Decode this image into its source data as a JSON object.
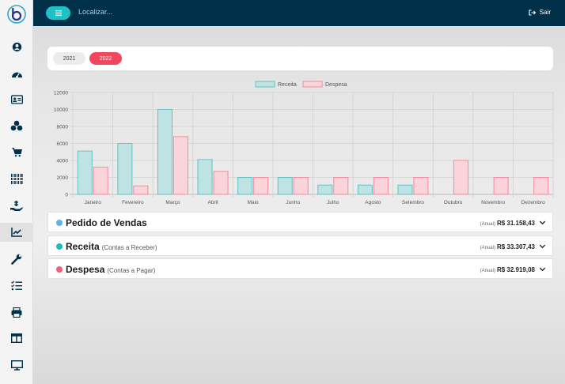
{
  "topbar": {
    "search_placeholder": "Localizar...",
    "logout_label": "Sair"
  },
  "sidebar": {
    "items": [
      {
        "icon": "user-circle-icon"
      },
      {
        "icon": "dashboard-gauge-icon"
      },
      {
        "icon": "id-card-icon"
      },
      {
        "icon": "boxes-icon"
      },
      {
        "icon": "shopping-cart-icon"
      },
      {
        "icon": "barcode-icon"
      },
      {
        "icon": "hand-holding-money-icon"
      },
      {
        "icon": "line-chart-icon",
        "active": true
      },
      {
        "icon": "wrench-icon"
      },
      {
        "icon": "task-list-icon"
      },
      {
        "icon": "printer-icon"
      },
      {
        "icon": "table-layout-icon"
      },
      {
        "icon": "monitor-icon"
      }
    ]
  },
  "years": {
    "items": [
      "2021",
      "2022"
    ],
    "selected": "2022"
  },
  "chart_data": {
    "type": "bar",
    "categories": [
      "Janeiro",
      "Fevereiro",
      "Março",
      "Abril",
      "Maio",
      "Junho",
      "Julho",
      "Agosto",
      "Setembro",
      "Outubro",
      "Novembro",
      "Dezembro"
    ],
    "series": [
      {
        "name": "Receita",
        "values": [
          5100,
          6000,
          10000,
          4100,
          2000,
          2000,
          1100,
          1100,
          1100,
          0,
          0,
          0
        ],
        "color": "#bfe3e3",
        "border": "#5fc3c3"
      },
      {
        "name": "Despesa",
        "values": [
          3200,
          1000,
          6800,
          2700,
          2000,
          2000,
          2000,
          2000,
          2000,
          4000,
          2000,
          2000
        ],
        "color": "#fbd3da",
        "border": "#f48a9d"
      }
    ],
    "yticks": [
      0,
      2000,
      4000,
      6000,
      8000,
      10000,
      12000
    ],
    "ylim": [
      0,
      12000
    ],
    "grid": true,
    "legend": "top-center"
  },
  "accordions": [
    {
      "title": "Pedido de Vendas",
      "subtitle": "",
      "period": "(Anual)",
      "amount": "R$ 31.158,43",
      "color": "#5bb3e6"
    },
    {
      "title": "Receita",
      "subtitle": "(Contas a Receber)",
      "period": "(Anual)",
      "amount": "R$ 33.307,43",
      "color": "#1cbfb4"
    },
    {
      "title": "Despesa",
      "subtitle": "(Contas a Pagar)",
      "period": "(Anual)",
      "amount": "R$ 32.919,08",
      "color": "#f2607a"
    }
  ]
}
